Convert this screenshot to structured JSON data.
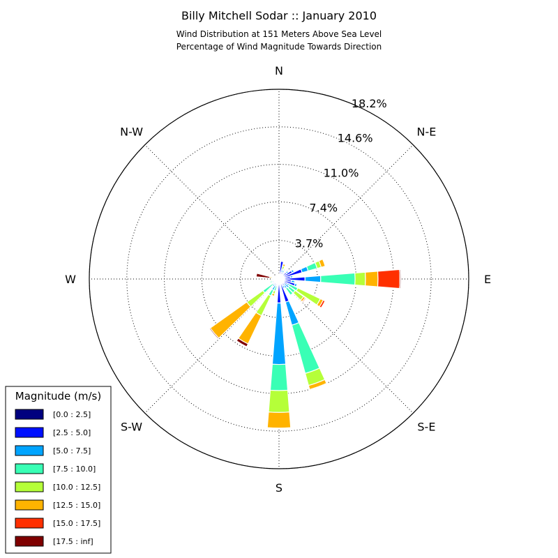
{
  "chart_data": {
    "type": "windrose",
    "title": "Billy Mitchell Sodar :: January 2010",
    "subtitle_lines": [
      "Wind Distribution at 151 Meters Above Sea Level",
      "Percentage of Wind Magnitude Towards Direction"
    ],
    "direction_labels": [
      "N",
      "N-E",
      "E",
      "S-E",
      "S",
      "S-W",
      "W",
      "N-W"
    ],
    "ring_values": [
      3.7,
      7.4,
      11.0,
      14.6,
      18.2
    ],
    "ring_labels": [
      "3.7%",
      "7.4%",
      "11.0%",
      "14.6%",
      "18.2%"
    ],
    "rmax": 18.2,
    "legend": {
      "title": "Magnitude (m/s)",
      "bins": [
        {
          "label": "[0.0 : 2.5]",
          "color": "#00007f"
        },
        {
          "label": "[2.5 : 5.0]",
          "color": "#0010ff"
        },
        {
          "label": "[5.0 : 7.5]",
          "color": "#00a4ff"
        },
        {
          "label": "[7.5 : 10.0]",
          "color": "#39ffb5"
        },
        {
          "label": "[10.0 : 12.5]",
          "color": "#b5ff39"
        },
        {
          "label": "[12.5 : 15.0]",
          "color": "#ffb300"
        },
        {
          "label": "[15.0 : 17.5]",
          "color": "#ff3000"
        },
        {
          "label": "[17.5 : inf]",
          "color": "#7f0000"
        }
      ]
    },
    "sector_width_deg": 9,
    "sectors": [
      {
        "direction_deg": 0,
        "values": [
          0.2,
          0.3,
          0.0,
          0.0,
          0.0,
          0.0,
          0.0,
          0.0
        ]
      },
      {
        "direction_deg": 10,
        "values": [
          0.3,
          1.4,
          0.0,
          0.0,
          0.0,
          0.0,
          0.0,
          0.0
        ]
      },
      {
        "direction_deg": 20,
        "values": [
          0.3,
          0.4,
          0.2,
          0.1,
          0.3,
          0.2,
          0.0,
          0.0
        ]
      },
      {
        "direction_deg": 30,
        "values": [
          0.3,
          0.4,
          0.2,
          0.1,
          0.1,
          0.0,
          0.0,
          0.0
        ]
      },
      {
        "direction_deg": 40,
        "values": [
          0.3,
          0.3,
          0.1,
          0.0,
          0.0,
          0.0,
          0.0,
          0.0
        ]
      },
      {
        "direction_deg": 50,
        "values": [
          0.4,
          0.5,
          0.2,
          0.0,
          0.0,
          0.0,
          0.0,
          0.0
        ]
      },
      {
        "direction_deg": 60,
        "values": [
          0.4,
          1.0,
          0.2,
          0.0,
          0.0,
          0.0,
          0.0,
          0.0
        ]
      },
      {
        "direction_deg": 70,
        "values": [
          0.4,
          1.9,
          0.6,
          0.9,
          0.4,
          0.4,
          0.0,
          0.0
        ]
      },
      {
        "direction_deg": 80,
        "values": [
          0.3,
          0.8,
          0.2,
          0.1,
          0.0,
          0.0,
          0.0,
          0.0
        ]
      },
      {
        "direction_deg": 90,
        "values": [
          0.4,
          2.1,
          1.5,
          3.3,
          1.0,
          1.2,
          2.1,
          0.1
        ]
      },
      {
        "direction_deg": 100,
        "values": [
          0.4,
          0.8,
          0.3,
          0.1,
          0.0,
          0.0,
          0.0,
          0.0
        ]
      },
      {
        "direction_deg": 110,
        "values": [
          0.4,
          1.2,
          0.2,
          0.0,
          0.0,
          0.0,
          0.0,
          0.0
        ]
      },
      {
        "direction_deg": 120,
        "values": [
          0.3,
          0.6,
          0.2,
          0.9,
          2.4,
          0.3,
          0.2,
          0.0
        ]
      },
      {
        "direction_deg": 130,
        "values": [
          0.3,
          0.3,
          0.6,
          0.7,
          1.0,
          0.2,
          0.1,
          0.0
        ]
      },
      {
        "direction_deg": 140,
        "values": [
          0.3,
          0.5,
          0.3,
          0.8,
          0.0,
          0.0,
          0.0,
          0.0
        ]
      },
      {
        "direction_deg": 150,
        "values": [
          0.3,
          0.4,
          0.3,
          0.0,
          0.0,
          0.0,
          0.0,
          0.0
        ]
      },
      {
        "direction_deg": 160,
        "values": [
          0.3,
          2.0,
          2.3,
          4.8,
          1.2,
          0.4,
          0.0,
          0.0
        ]
      },
      {
        "direction_deg": 170,
        "values": [
          0.3,
          0.2,
          0.0,
          0.0,
          0.0,
          0.0,
          0.0,
          0.0
        ]
      },
      {
        "direction_deg": 180,
        "values": [
          0.3,
          2.0,
          5.9,
          2.5,
          2.1,
          1.5,
          0.0,
          0.0
        ]
      },
      {
        "direction_deg": 190,
        "values": [
          0.3,
          0.2,
          0.1,
          0.0,
          0.0,
          0.0,
          0.0,
          0.0
        ]
      },
      {
        "direction_deg": 200,
        "values": [
          0.3,
          0.3,
          0.1,
          0.5,
          0.3,
          0.2,
          0.0,
          0.0
        ]
      },
      {
        "direction_deg": 210,
        "values": [
          0.3,
          0.4,
          0.5,
          0.6,
          2.1,
          3.0,
          0.0,
          0.3
        ]
      },
      {
        "direction_deg": 220,
        "values": [
          0.3,
          0.4,
          0.2,
          0.0,
          0.0,
          0.0,
          0.0,
          0.0
        ]
      },
      {
        "direction_deg": 230,
        "values": [
          0.3,
          0.3,
          0.1,
          1.2,
          1.9,
          4.3,
          0.0,
          0.1
        ]
      },
      {
        "direction_deg": 240,
        "values": [
          0.3,
          0.3,
          0.1,
          0.0,
          0.0,
          0.0,
          0.0,
          0.0
        ]
      },
      {
        "direction_deg": 250,
        "values": [
          0.3,
          0.2,
          0.2,
          0.2,
          0.0,
          0.0,
          0.0,
          0.0
        ]
      },
      {
        "direction_deg": 260,
        "values": [
          0.3,
          0.2,
          0.1,
          0.1,
          0.0,
          0.1,
          0.0,
          0.0
        ]
      },
      {
        "direction_deg": 270,
        "values": [
          0.3,
          0.2,
          0.1,
          0.0,
          0.0,
          0.0,
          0.0,
          0.0
        ]
      },
      {
        "direction_deg": 280,
        "values": [
          0.3,
          0.2,
          0.1,
          0.1,
          0.0,
          0.2,
          0.0,
          1.3
        ]
      },
      {
        "direction_deg": 290,
        "values": [
          0.3,
          0.2,
          0.0,
          0.0,
          0.0,
          0.0,
          0.0,
          0.0
        ]
      },
      {
        "direction_deg": 300,
        "values": [
          0.2,
          0.1,
          0.0,
          0.0,
          0.0,
          0.0,
          0.0,
          0.0
        ]
      },
      {
        "direction_deg": 310,
        "values": [
          0.2,
          0.1,
          0.0,
          0.0,
          0.0,
          0.0,
          0.0,
          0.0
        ]
      },
      {
        "direction_deg": 320,
        "values": [
          0.2,
          0.1,
          0.0,
          0.0,
          0.0,
          0.0,
          0.0,
          0.0
        ]
      },
      {
        "direction_deg": 330,
        "values": [
          0.2,
          0.1,
          0.0,
          0.0,
          0.0,
          0.0,
          0.0,
          0.0
        ]
      },
      {
        "direction_deg": 340,
        "values": [
          0.2,
          0.1,
          0.0,
          0.0,
          0.0,
          0.0,
          0.0,
          0.0
        ]
      },
      {
        "direction_deg": 350,
        "values": [
          0.2,
          0.2,
          0.0,
          0.0,
          0.0,
          0.0,
          0.0,
          0.0
        ]
      }
    ]
  }
}
